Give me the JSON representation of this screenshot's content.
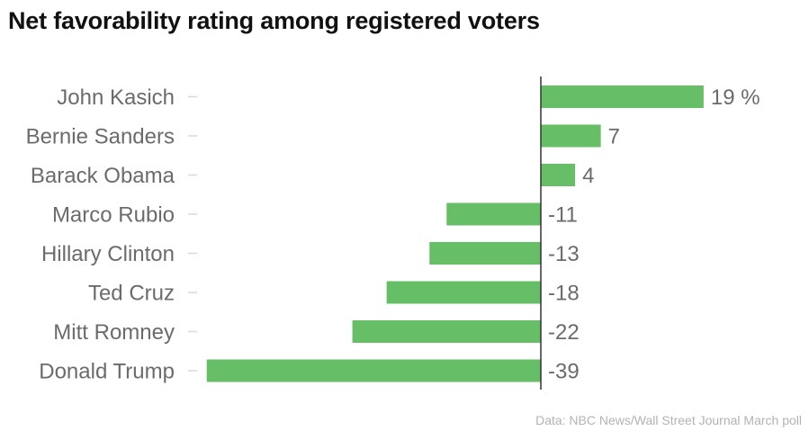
{
  "chart_data": {
    "type": "bar",
    "orientation": "horizontal",
    "title": "Net favorability rating among registered voters",
    "categories": [
      "John Kasich",
      "Bernie Sanders",
      "Barack Obama",
      "Marco Rubio",
      "Hillary Clinton",
      "Ted Cruz",
      "Mitt Romney",
      "Donald Trump"
    ],
    "values": [
      19,
      7,
      4,
      -11,
      -13,
      -18,
      -22,
      -39
    ],
    "value_labels": [
      "19 %",
      "7",
      "4",
      "-11",
      "-13",
      "-18",
      "-22",
      "-39"
    ],
    "xlabel": "",
    "ylabel": "",
    "xlim": [
      -39,
      19
    ],
    "grid": false,
    "legend": "none",
    "bar_color": "#66bf66",
    "source": "Data: NBC News/Wall Street Journal March poll"
  }
}
